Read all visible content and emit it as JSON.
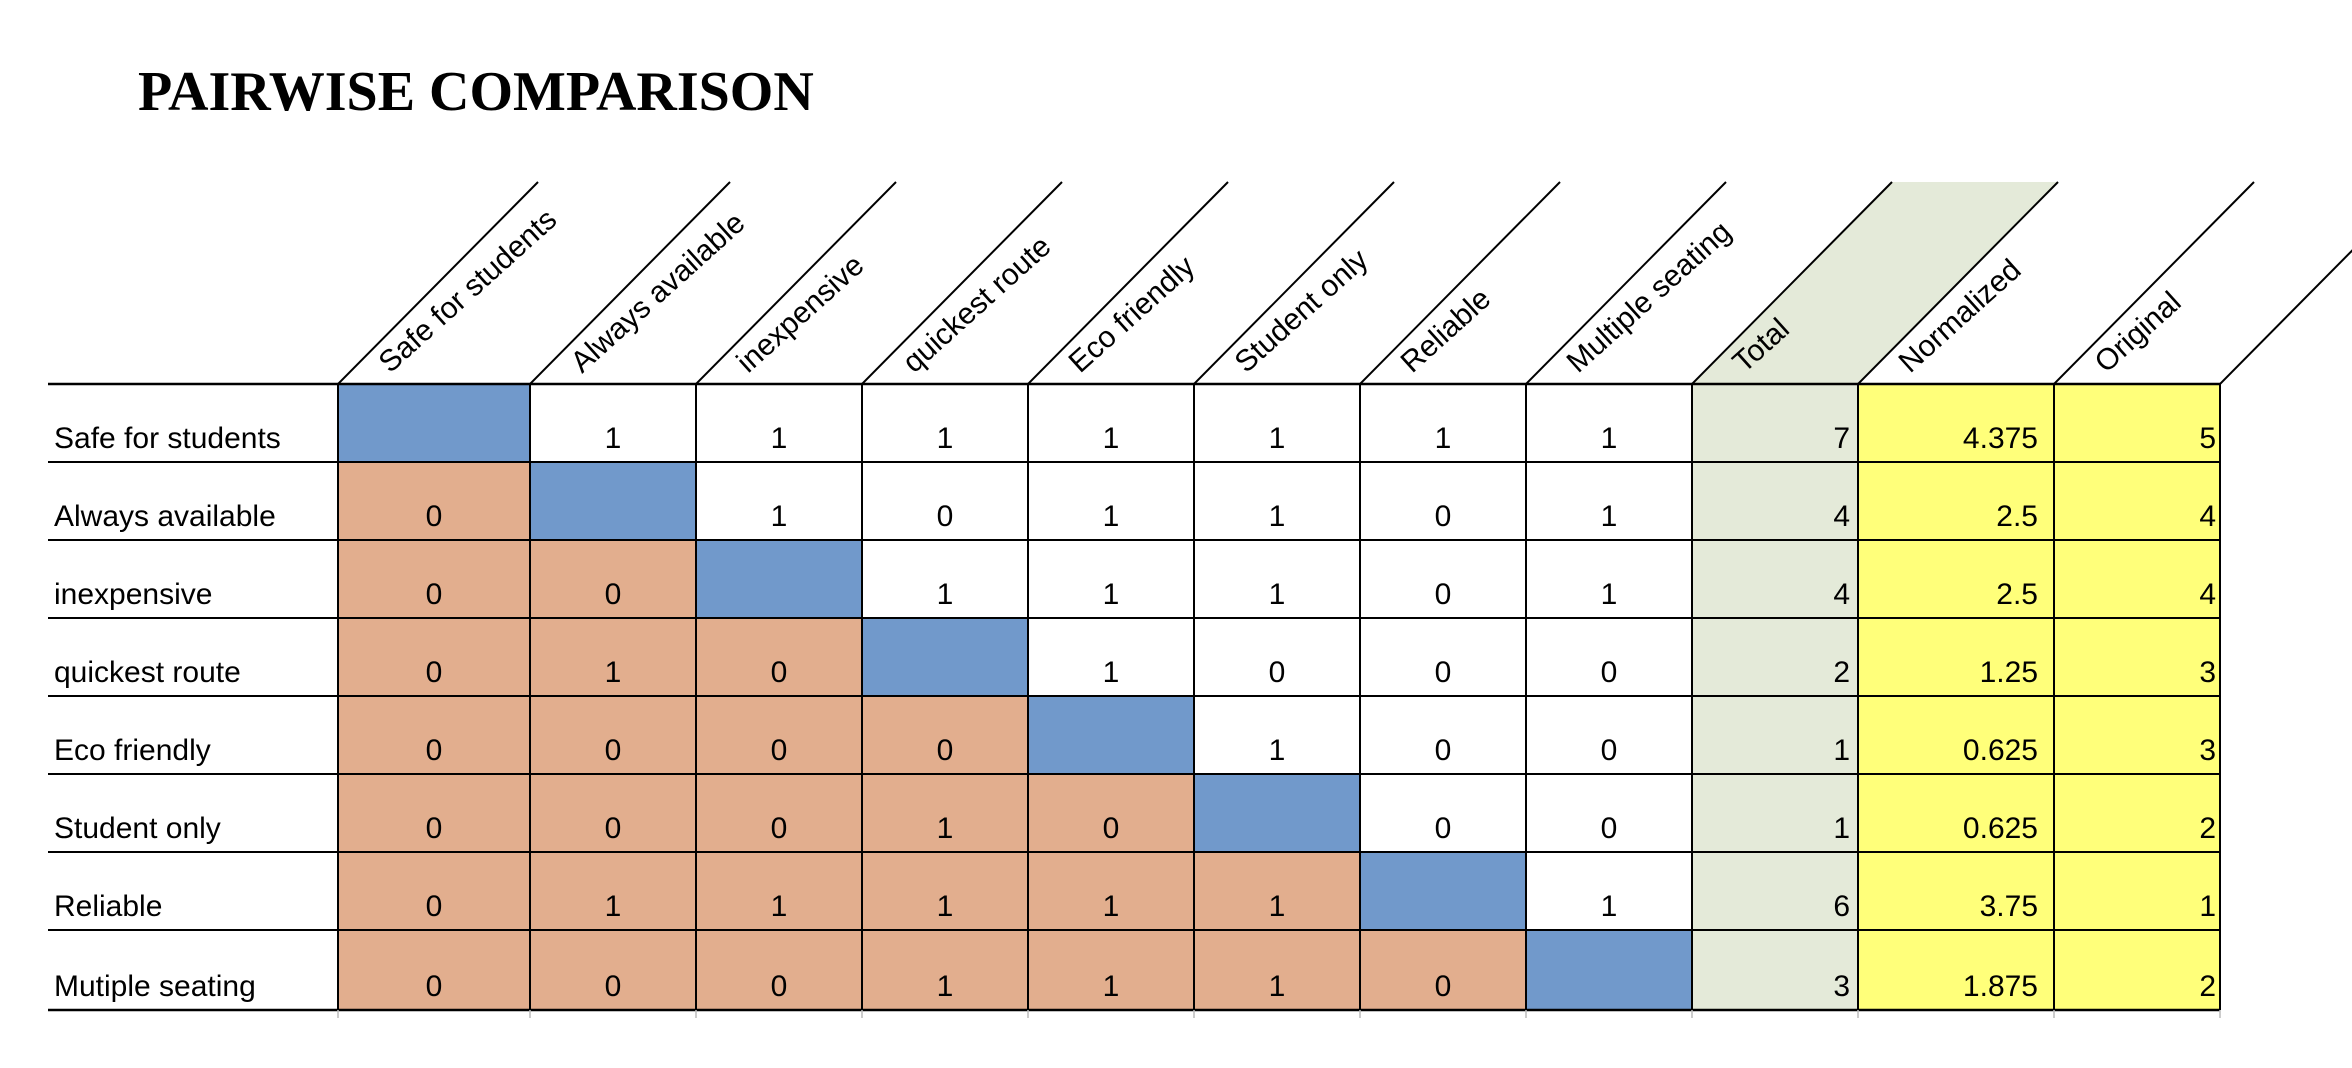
{
  "title": "PAIRWISE COMPARISON",
  "columns": [
    "Safe for students",
    "Always available",
    "inexpensive",
    "quickest route",
    "Eco friendly",
    "Student only",
    "Reliable",
    "Multiple seating"
  ],
  "summary_columns": [
    "Total",
    "Normalized",
    "Original"
  ],
  "rows": [
    {
      "label": "Safe for students",
      "values": [
        null,
        "1",
        "1",
        "1",
        "1",
        "1",
        "1",
        "1"
      ],
      "total": "7",
      "normalized": "4.375",
      "original": "5"
    },
    {
      "label": "Always available",
      "values": [
        "0",
        null,
        "1",
        "0",
        "1",
        "1",
        "0",
        "1"
      ],
      "total": "4",
      "normalized": "2.5",
      "original": "4"
    },
    {
      "label": "inexpensive",
      "values": [
        "0",
        "0",
        null,
        "1",
        "1",
        "1",
        "0",
        "1"
      ],
      "total": "4",
      "normalized": "2.5",
      "original": "4"
    },
    {
      "label": "quickest route",
      "values": [
        "0",
        "1",
        "0",
        null,
        "1",
        "0",
        "0",
        "0"
      ],
      "total": "2",
      "normalized": "1.25",
      "original": "3"
    },
    {
      "label": "Eco friendly",
      "values": [
        "0",
        "0",
        "0",
        "0",
        null,
        "1",
        "0",
        "0"
      ],
      "total": "1",
      "normalized": "0.625",
      "original": "3"
    },
    {
      "label": "Student only",
      "values": [
        "0",
        "0",
        "0",
        "1",
        "0",
        null,
        "0",
        "0"
      ],
      "total": "1",
      "normalized": "0.625",
      "original": "2"
    },
    {
      "label": "Reliable",
      "values": [
        "0",
        "1",
        "1",
        "1",
        "1",
        "1",
        null,
        "1"
      ],
      "total": "6",
      "normalized": "3.75",
      "original": "1"
    },
    {
      "label": "Mutiple seating",
      "values": [
        "0",
        "0",
        "0",
        "1",
        "1",
        "1",
        "0",
        null
      ],
      "total": "3",
      "normalized": "1.875",
      "original": "2"
    }
  ],
  "colors": {
    "diagonal": "#7199cb",
    "lower_triangle": "#e2ae8e",
    "upper_triangle": "#ffffff",
    "total_column": "#e4ead9",
    "normalized_original_columns": "#ffff7a",
    "grid_line": "#000000"
  }
}
